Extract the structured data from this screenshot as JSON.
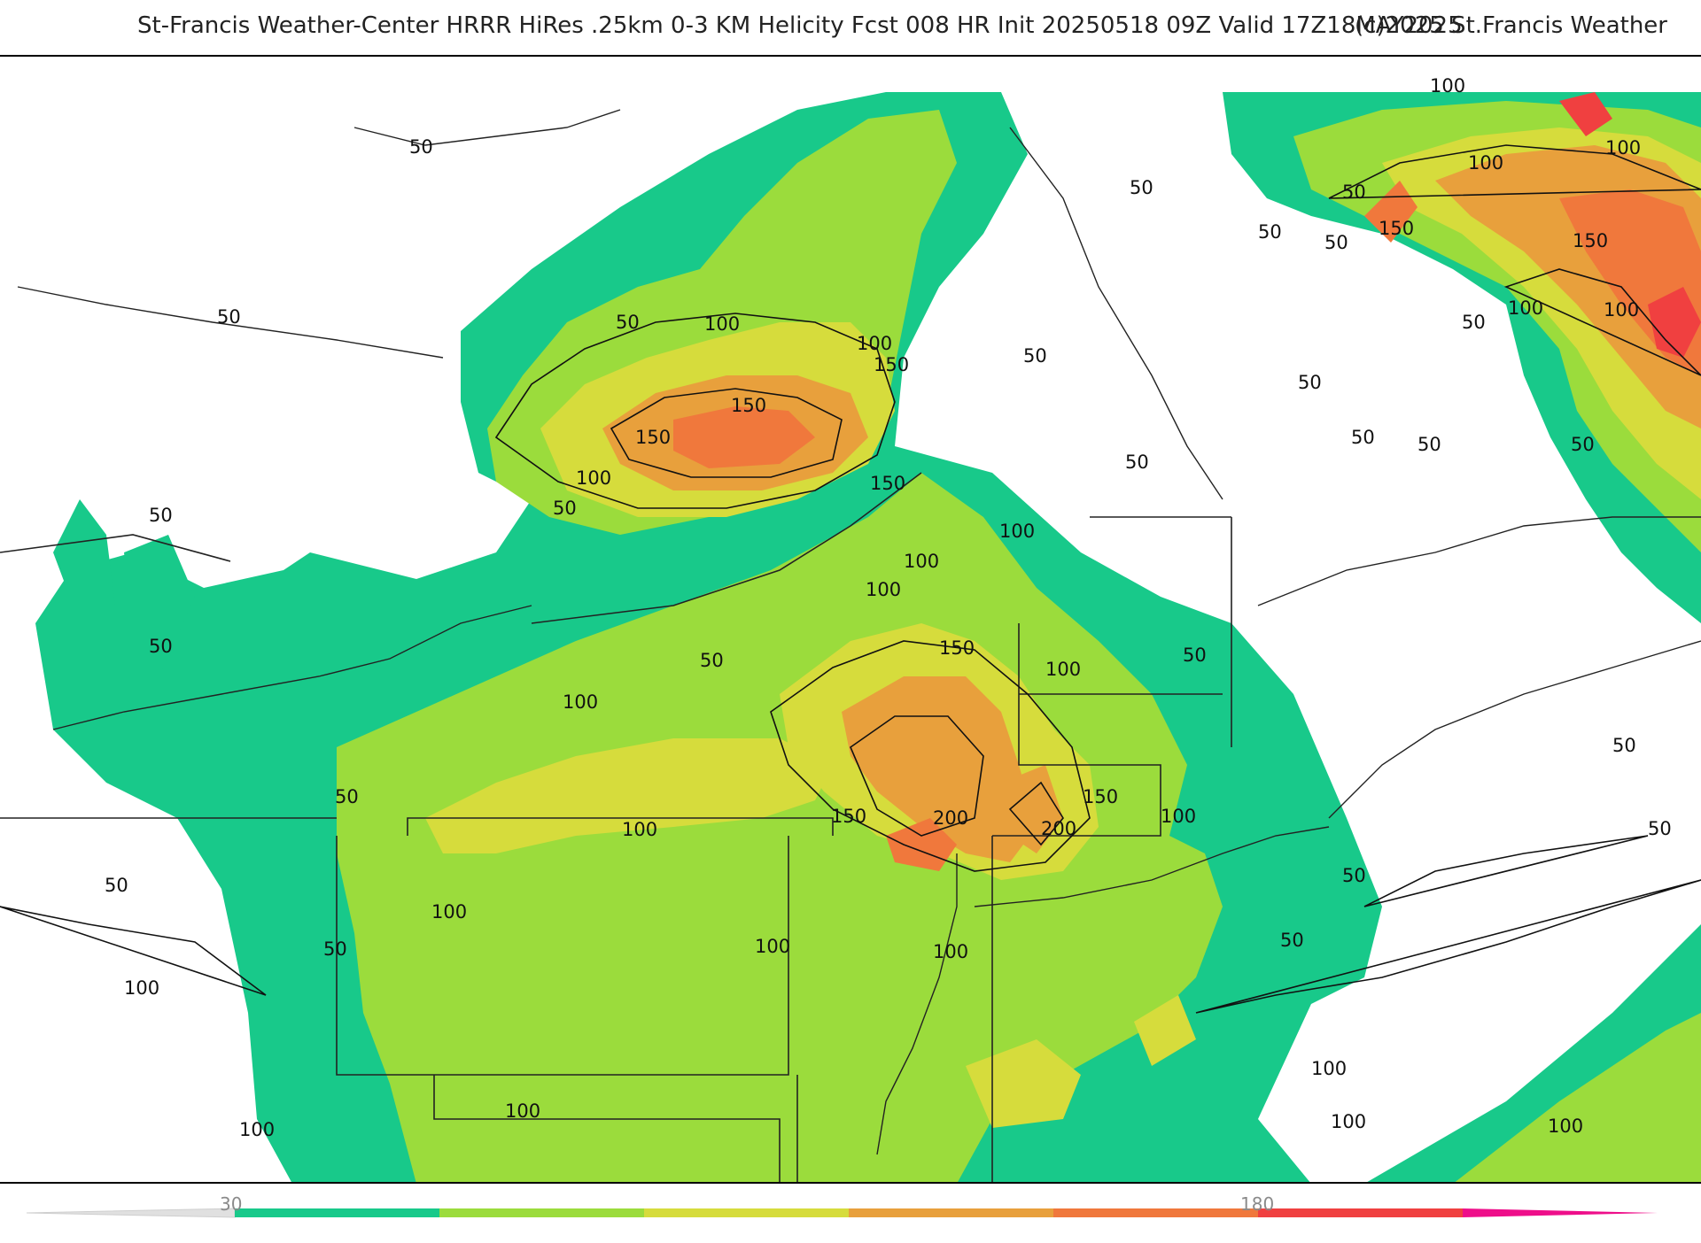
{
  "header": {
    "title": "St-Francis Weather-Center HRRR HiRes .25km 0-3 KM Helicity Fcst 008 HR Init 20250518 09Z  Valid 17Z18MAY2025",
    "copyright": "(c)2025 St.Francis Weather"
  },
  "colors": {
    "band_30": "#18c98a",
    "band_60": "#9bdc3c",
    "band_90": "#d6dc3c",
    "band_120": "#e8a03c",
    "band_150": "#f0783c",
    "band_180": "#f04040",
    "band_210": "#ee0e8a",
    "contour": "#111111",
    "boundary": "#222222",
    "county": "#b0b0b0"
  },
  "colorbar": {
    "tick_labels": [
      "30",
      "180"
    ],
    "colors": [
      "#18c98a",
      "#9bdc3c",
      "#d6dc3c",
      "#e8a03c",
      "#f0783c",
      "#f04040",
      "#ee0e8a"
    ]
  },
  "contour_labels": [
    "50",
    "50",
    "50",
    "50",
    "50",
    "50",
    "50",
    "50",
    "50",
    "50",
    "50",
    "50",
    "50",
    "50",
    "50",
    "50",
    "50",
    "50",
    "50",
    "50",
    "50",
    "50",
    "50",
    "50",
    "50",
    "50",
    "100",
    "100",
    "100",
    "100",
    "100",
    "100",
    "100",
    "100",
    "100",
    "100",
    "100",
    "100",
    "100",
    "100",
    "100",
    "100",
    "100",
    "100",
    "100",
    "100",
    "100",
    "100",
    "100",
    "100",
    "150",
    "150",
    "150",
    "150",
    "150",
    "150",
    "150",
    "150",
    "150",
    "200",
    "200"
  ]
}
